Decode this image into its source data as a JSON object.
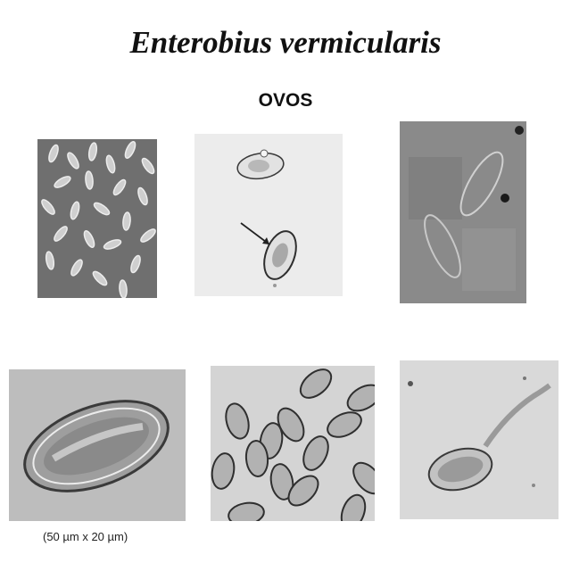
{
  "title": "Enterobius vermicularis",
  "subtitle": "OVOS",
  "caption": "(50 µm x 20 µm)",
  "colors": {
    "background": "#ffffff",
    "text": "#111111"
  }
}
